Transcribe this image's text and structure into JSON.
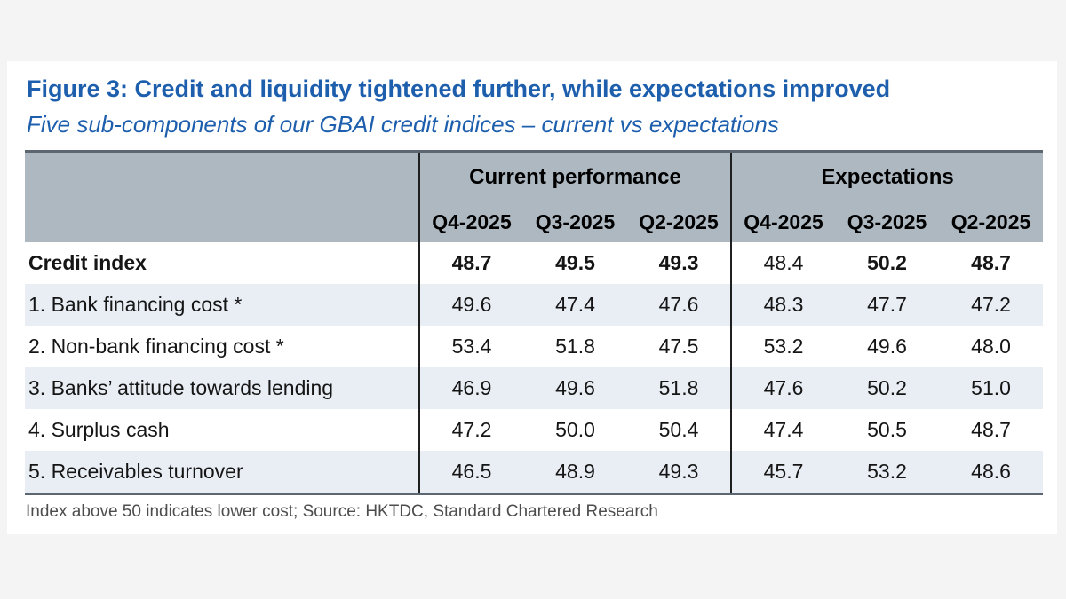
{
  "figure": {
    "title": "Figure 3: Credit and liquidity tightened further, while expectations improved",
    "subtitle": "Five sub-components of our GBAI credit indices – current vs expectations",
    "footnote": "Index above 50 indicates lower cost; Source: HKTDC, Standard Chartered Research"
  },
  "chart_data": {
    "type": "table",
    "title": "Five sub-components of GBAI credit indices – current vs expectations",
    "column_groups": [
      {
        "label": "Current performance",
        "span": 3
      },
      {
        "label": "Expectations",
        "span": 3
      }
    ],
    "columns": [
      "Q4-2025",
      "Q3-2025",
      "Q2-2025",
      "Q4-2025",
      "Q3-2025",
      "Q2-2025"
    ],
    "rows": [
      {
        "label": "Credit index",
        "label_bold": true,
        "shaded": false,
        "values": [
          "48.7",
          "49.5",
          "49.3",
          "48.4",
          "50.2",
          "48.7"
        ],
        "bold_cells": [
          true,
          true,
          true,
          false,
          true,
          true
        ]
      },
      {
        "label": "1. Bank financing cost *",
        "label_bold": false,
        "shaded": true,
        "values": [
          "49.6",
          "47.4",
          "47.6",
          "48.3",
          "47.7",
          "47.2"
        ],
        "bold_cells": [
          false,
          false,
          false,
          false,
          false,
          false
        ]
      },
      {
        "label": "2. Non-bank financing cost *",
        "label_bold": false,
        "shaded": false,
        "values": [
          "53.4",
          "51.8",
          "47.5",
          "53.2",
          "49.6",
          "48.0"
        ],
        "bold_cells": [
          false,
          false,
          false,
          false,
          false,
          false
        ]
      },
      {
        "label": "3. Banks’ attitude towards lending",
        "label_bold": false,
        "shaded": true,
        "values": [
          "46.9",
          "49.6",
          "51.8",
          "47.6",
          "50.2",
          "51.0"
        ],
        "bold_cells": [
          false,
          false,
          false,
          false,
          false,
          false
        ]
      },
      {
        "label": "4. Surplus cash",
        "label_bold": false,
        "shaded": false,
        "values": [
          "47.2",
          "50.0",
          "50.4",
          "47.4",
          "50.5",
          "48.7"
        ],
        "bold_cells": [
          false,
          false,
          false,
          false,
          false,
          false
        ]
      },
      {
        "label": "5. Receivables turnover",
        "label_bold": false,
        "shaded": true,
        "values": [
          "46.5",
          "48.9",
          "49.3",
          "45.7",
          "53.2",
          "48.6"
        ],
        "bold_cells": [
          false,
          false,
          false,
          false,
          false,
          false
        ]
      }
    ]
  },
  "colors": {
    "title_blue": "#1e5fad",
    "header_fill": "#aeb8c1",
    "row_stripe": "#e9edf4",
    "table_border": "#5c6670",
    "column_divider": "#1f1f1f",
    "footnote_gray": "#4d4d4d",
    "page_background": "#f4f4f5",
    "panel_background": "#ffffff"
  }
}
